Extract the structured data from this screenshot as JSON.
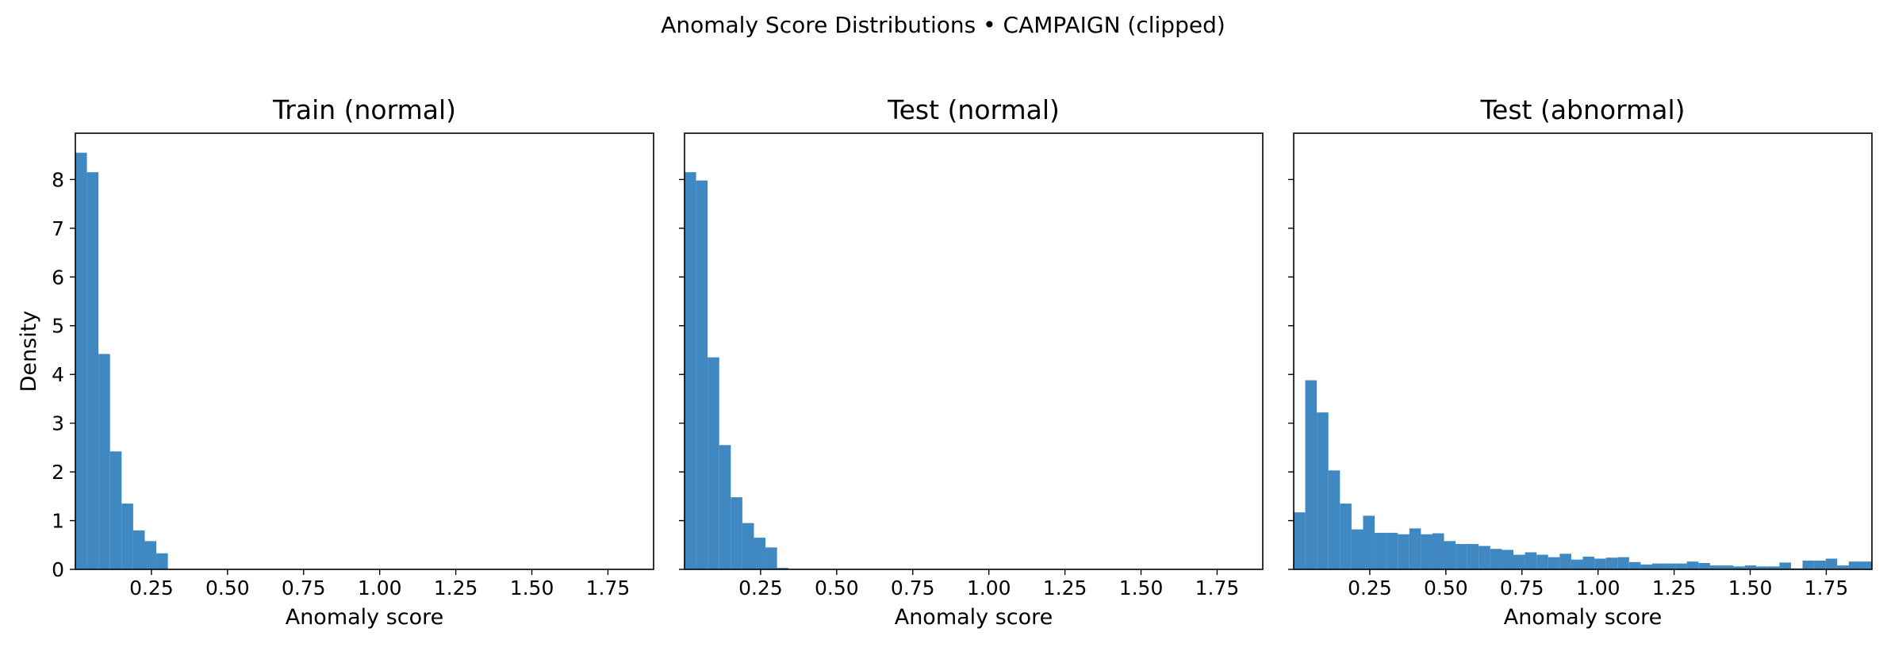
{
  "figure": {
    "suptitle": "Anomaly Score Distributions • CAMPAIGN (clipped)"
  },
  "style": {
    "bar_color": "#2b7bba",
    "bar_opacity": 0.9
  },
  "chart_data": [
    {
      "type": "bar",
      "title": "Train (normal)",
      "xlabel": "Anomaly score",
      "ylabel": "Density",
      "xlim": [
        0.0,
        1.9
      ],
      "ylim": [
        0,
        8.95
      ],
      "xticks": [
        "0.25",
        "0.50",
        "0.75",
        "1.00",
        "1.25",
        "1.50",
        "1.75"
      ],
      "yticks": [
        "0",
        "1",
        "2",
        "3",
        "4",
        "5",
        "6",
        "7",
        "8"
      ],
      "y_tick_labels_visible": true,
      "bin_width": 0.038,
      "x": [
        0.0,
        0.038,
        0.076,
        0.114,
        0.152,
        0.19,
        0.228,
        0.266
      ],
      "values": [
        8.55,
        8.15,
        4.42,
        2.42,
        1.35,
        0.8,
        0.58,
        0.33
      ]
    },
    {
      "type": "bar",
      "title": "Test (normal)",
      "xlabel": "Anomaly score",
      "ylabel": "",
      "xlim": [
        0.0,
        1.9
      ],
      "ylim": [
        0,
        8.95
      ],
      "xticks": [
        "0.25",
        "0.50",
        "0.75",
        "1.00",
        "1.25",
        "1.50",
        "1.75"
      ],
      "yticks": [
        "0",
        "1",
        "2",
        "3",
        "4",
        "5",
        "6",
        "7",
        "8"
      ],
      "y_tick_labels_visible": false,
      "bin_width": 0.038,
      "x": [
        0.0,
        0.038,
        0.076,
        0.114,
        0.152,
        0.19,
        0.228,
        0.266,
        0.304
      ],
      "values": [
        8.15,
        7.98,
        4.35,
        2.55,
        1.48,
        0.95,
        0.65,
        0.45,
        0.03
      ]
    },
    {
      "type": "bar",
      "title": "Test (abnormal)",
      "xlabel": "Anomaly score",
      "ylabel": "",
      "xlim": [
        0.0,
        1.9
      ],
      "ylim": [
        0,
        8.95
      ],
      "xticks": [
        "0.25",
        "0.50",
        "0.75",
        "1.00",
        "1.25",
        "1.50",
        "1.75"
      ],
      "yticks": [
        "0",
        "1",
        "2",
        "3",
        "4",
        "5",
        "6",
        "7",
        "8"
      ],
      "y_tick_labels_visible": false,
      "bin_width": 0.038,
      "x": [
        0.0,
        0.038,
        0.076,
        0.114,
        0.152,
        0.19,
        0.228,
        0.266,
        0.304,
        0.342,
        0.38,
        0.418,
        0.456,
        0.494,
        0.532,
        0.57,
        0.608,
        0.646,
        0.684,
        0.722,
        0.76,
        0.798,
        0.836,
        0.874,
        0.912,
        0.95,
        0.988,
        1.026,
        1.064,
        1.102,
        1.14,
        1.178,
        1.216,
        1.254,
        1.292,
        1.33,
        1.368,
        1.406,
        1.444,
        1.482,
        1.52,
        1.558,
        1.596,
        1.634,
        1.672,
        1.71,
        1.748,
        1.786,
        1.824,
        1.862
      ],
      "values": [
        1.17,
        3.88,
        3.22,
        2.03,
        1.35,
        0.82,
        1.1,
        0.75,
        0.75,
        0.72,
        0.84,
        0.72,
        0.74,
        0.58,
        0.52,
        0.52,
        0.48,
        0.42,
        0.4,
        0.3,
        0.35,
        0.3,
        0.25,
        0.32,
        0.2,
        0.26,
        0.22,
        0.24,
        0.25,
        0.15,
        0.1,
        0.12,
        0.12,
        0.12,
        0.16,
        0.13,
        0.08,
        0.08,
        0.06,
        0.08,
        0.06,
        0.06,
        0.14,
        0.02,
        0.18,
        0.18,
        0.22,
        0.08,
        0.16,
        0.16
      ]
    }
  ]
}
